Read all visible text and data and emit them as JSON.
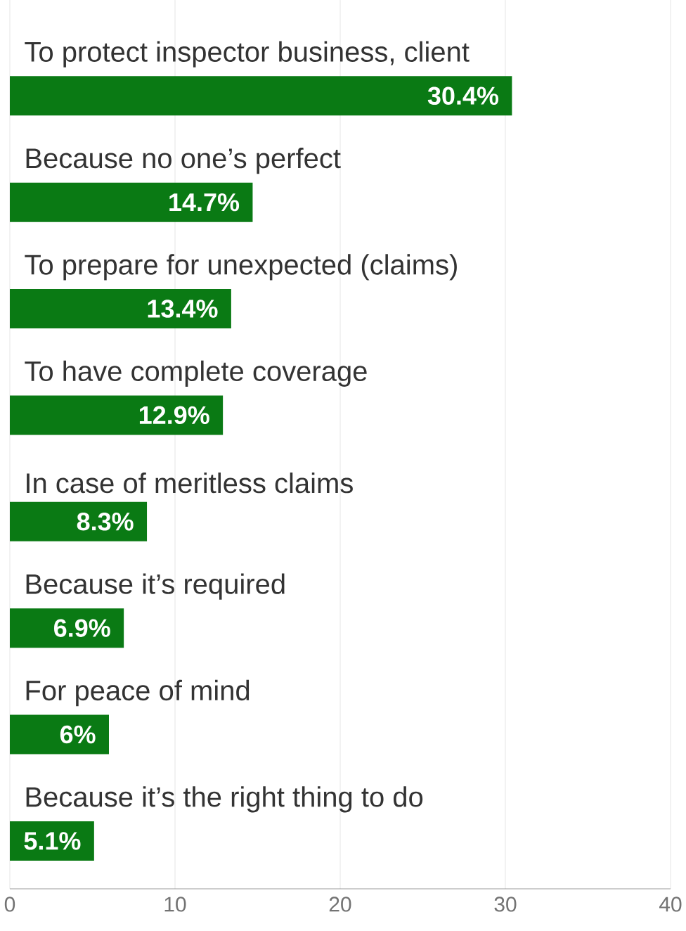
{
  "chart_data": {
    "type": "bar",
    "orientation": "horizontal",
    "categories": [
      "To protect inspector business, client",
      "Because no one’s perfect",
      "To prepare for unexpected (claims)",
      "To have complete coverage",
      "In case of meritless claims",
      "Because it’s required",
      "For peace of mind",
      "Because it’s the right thing to do"
    ],
    "values": [
      30.4,
      14.7,
      13.4,
      12.9,
      8.3,
      6.9,
      6,
      5.1
    ],
    "value_labels": [
      "30.4%",
      "14.7%",
      "13.4%",
      "12.9%",
      "8.3%",
      "6.9%",
      "6%",
      "5.1%"
    ],
    "color": "#0a7a14",
    "xlim": [
      0,
      40
    ],
    "xticks": [
      0,
      10,
      20,
      30,
      40
    ],
    "grid": "x"
  }
}
